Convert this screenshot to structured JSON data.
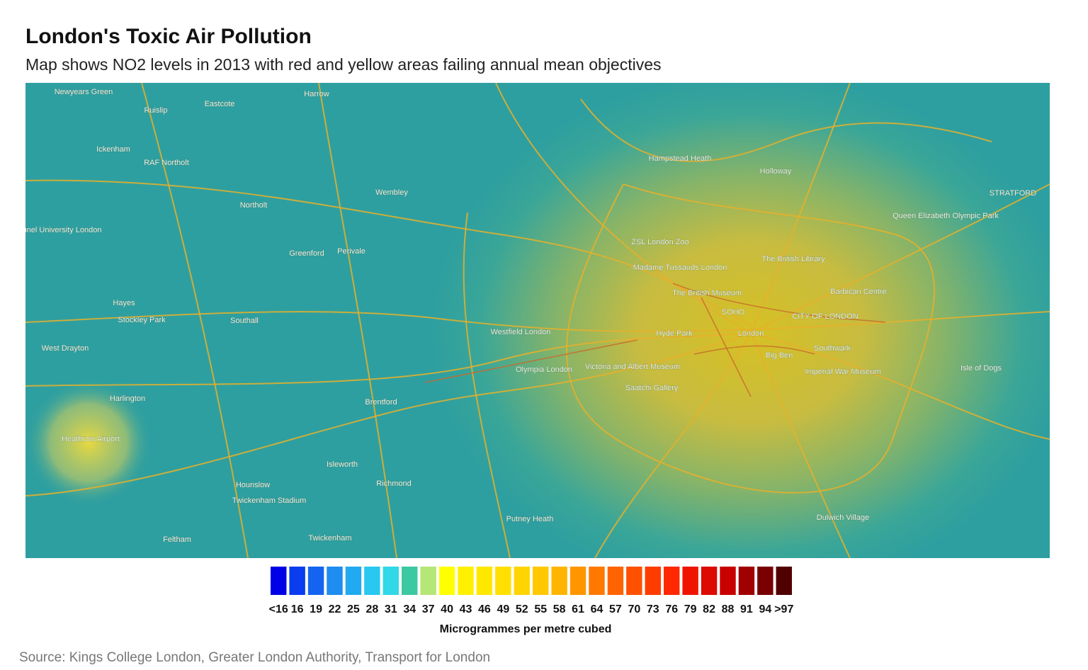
{
  "header": {
    "title": "London's Toxic Air Pollution",
    "subtitle": "Map shows NO2 levels in 2013 with red and yellow areas failing annual mean objectives"
  },
  "map": {
    "places": [
      "Newyears Green",
      "Ruislip",
      "Eastcote",
      "Harrow",
      "Ickenham",
      "RAF Northolt",
      "Wembley",
      "Northolt",
      "Brunel University London",
      "Greenford",
      "Perivale",
      "Hayes",
      "Stockley Park",
      "Southall",
      "West Drayton",
      "Harlington",
      "Heathrow Airport",
      "Hounslow",
      "Twickenham Stadium",
      "Isleworth",
      "Richmond",
      "Twickenham",
      "Feltham",
      "Brentford",
      "Westfield London",
      "Olympia London",
      "Hyde Park",
      "Victoria and Albert Museum",
      "Saatchi Gallery",
      "Madame Tussauds London",
      "ZSL London Zoo",
      "The British Museum",
      "SOHO",
      "London",
      "CITY OF LONDON",
      "Barbican Centre",
      "The British Library",
      "Southwark",
      "Imperial War Museum",
      "Big Ben",
      "Hampstead Heath",
      "Holloway",
      "STRATFORD",
      "Queen Elizabeth Olympic Park",
      "Isle of Dogs",
      "Putney Heath",
      "Dulwich Village"
    ]
  },
  "legend": {
    "labels": [
      "<16",
      "16",
      "19",
      "22",
      "25",
      "28",
      "31",
      "34",
      "37",
      "40",
      "43",
      "46",
      "49",
      "52",
      "55",
      "58",
      "61",
      "64",
      "57",
      "70",
      "73",
      "76",
      "79",
      "82",
      "88",
      "91",
      "94",
      ">97"
    ],
    "colors": [
      "#0000e6",
      "#0a3cf0",
      "#1464f0",
      "#1e8cf0",
      "#22aaf0",
      "#28c8f0",
      "#30d8e8",
      "#3cc8a0",
      "#b4e678",
      "#ffff00",
      "#fff000",
      "#ffe800",
      "#ffe000",
      "#ffd400",
      "#ffc800",
      "#ffb400",
      "#ff9600",
      "#ff7800",
      "#ff6400",
      "#ff5000",
      "#ff3c00",
      "#ff2800",
      "#f01400",
      "#dc0a00",
      "#c80000",
      "#a00000",
      "#780000",
      "#500000"
    ],
    "title": "Microgrammes per metre cubed"
  },
  "footer": {
    "source": "Source: Kings College London, Greater London Authority, Transport for London"
  }
}
